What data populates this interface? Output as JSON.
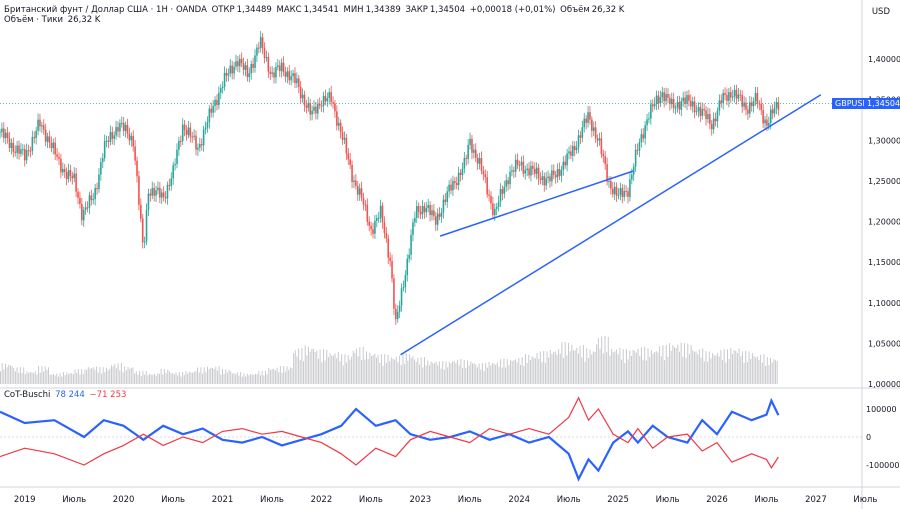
{
  "header": {
    "symbol": "Британский фунт / Доллар США · 1Н · OANDA",
    "open_label": "ОТКР",
    "open": "1,34489",
    "high_label": "МАКС",
    "high": "1,34541",
    "low_label": "МИН",
    "low": "1,34389",
    "close_label": "ЗАКР",
    "close": "1,34504",
    "change": "+0,00018 (+0,01%)",
    "volume_label": "Объём",
    "volume": "26,32 K"
  },
  "volume_legend": {
    "label": "Объём · Тики",
    "value": "26,32 K"
  },
  "cot_legend": {
    "label": "CoT-Buschi",
    "blue_value": "78 244",
    "red_value": "−71 253"
  },
  "currency": "USD",
  "price_tag": {
    "symbol": "GBPUSD",
    "value": "1,34504",
    "color": "#2962ff"
  },
  "colors": {
    "up": "#26a69a",
    "down": "#ef5350",
    "trend": "#2962ff",
    "cot_blue": "#2962ff",
    "cot_red": "#f23645",
    "volume": "#c8c9cc"
  },
  "chart_data": [
    {
      "type": "candlestick",
      "title": "Британский фунт / Доллар США · 1Н · OANDA",
      "y_ticks": [
        "1,40000",
        "1,35000",
        "1,30000",
        "1,25000",
        "1,20000",
        "1,15000",
        "1,10000",
        "1,05000",
        "1,00000"
      ],
      "ylim": [
        1.0,
        1.42
      ],
      "x_ticks": [
        "2019",
        "Июль",
        "2020",
        "Июль",
        "2021",
        "Июль",
        "2022",
        "Июль",
        "2023",
        "Июль",
        "2024",
        "Июль",
        "2025",
        "Июль",
        "2026",
        "Июль",
        "2027",
        "Июль"
      ],
      "x_tick_values": [
        2019.0,
        2019.5,
        2020.0,
        2020.5,
        2021.0,
        2021.5,
        2022.0,
        2022.5,
        2023.0,
        2023.5,
        2024.0,
        2024.5,
        2025.0,
        2025.5,
        2026.0,
        2026.5,
        2027.0,
        2027.5
      ],
      "xlim": [
        2018.75,
        2027.85
      ],
      "close_path": [
        [
          2018.75,
          1.31
        ],
        [
          2018.9,
          1.29
        ],
        [
          2019.0,
          1.28
        ],
        [
          2019.15,
          1.32
        ],
        [
          2019.25,
          1.3
        ],
        [
          2019.35,
          1.27
        ],
        [
          2019.5,
          1.25
        ],
        [
          2019.58,
          1.21
        ],
        [
          2019.7,
          1.23
        ],
        [
          2019.8,
          1.29
        ],
        [
          2019.95,
          1.32
        ],
        [
          2020.1,
          1.3
        ],
        [
          2020.2,
          1.16
        ],
        [
          2020.25,
          1.24
        ],
        [
          2020.4,
          1.23
        ],
        [
          2020.5,
          1.26
        ],
        [
          2020.6,
          1.32
        ],
        [
          2020.75,
          1.29
        ],
        [
          2020.9,
          1.34
        ],
        [
          2021.0,
          1.37
        ],
        [
          2021.15,
          1.4
        ],
        [
          2021.25,
          1.38
        ],
        [
          2021.38,
          1.42
        ],
        [
          2021.5,
          1.38
        ],
        [
          2021.6,
          1.39
        ],
        [
          2021.75,
          1.37
        ],
        [
          2021.9,
          1.33
        ],
        [
          2022.0,
          1.35
        ],
        [
          2022.1,
          1.35
        ],
        [
          2022.2,
          1.31
        ],
        [
          2022.3,
          1.26
        ],
        [
          2022.4,
          1.23
        ],
        [
          2022.5,
          1.19
        ],
        [
          2022.6,
          1.21
        ],
        [
          2022.7,
          1.15
        ],
        [
          2022.75,
          1.07
        ],
        [
          2022.85,
          1.14
        ],
        [
          2022.95,
          1.21
        ],
        [
          2023.05,
          1.22
        ],
        [
          2023.15,
          1.2
        ],
        [
          2023.3,
          1.24
        ],
        [
          2023.45,
          1.27
        ],
        [
          2023.5,
          1.3
        ],
        [
          2023.6,
          1.27
        ],
        [
          2023.75,
          1.21
        ],
        [
          2023.9,
          1.26
        ],
        [
          2024.0,
          1.27
        ],
        [
          2024.15,
          1.26
        ],
        [
          2024.3,
          1.25
        ],
        [
          2024.45,
          1.27
        ],
        [
          2024.55,
          1.29
        ],
        [
          2024.7,
          1.33
        ],
        [
          2024.8,
          1.3
        ],
        [
          2024.9,
          1.25
        ],
        [
          2025.0,
          1.23
        ],
        [
          2025.1,
          1.24
        ],
        [
          2025.2,
          1.29
        ],
        [
          2025.3,
          1.33
        ],
        [
          2025.45,
          1.36
        ],
        [
          2025.55,
          1.34
        ],
        [
          2025.65,
          1.35
        ],
        [
          2025.8,
          1.34
        ],
        [
          2025.95,
          1.32
        ],
        [
          2026.05,
          1.35
        ],
        [
          2026.15,
          1.36
        ],
        [
          2026.3,
          1.34
        ],
        [
          2026.4,
          1.35
        ],
        [
          2026.5,
          1.32
        ],
        [
          2026.62,
          1.345
        ]
      ],
      "trend_lines": [
        {
          "from": [
            2023.2,
            1.182
          ],
          "to": [
            2025.15,
            1.262
          ]
        },
        {
          "from": [
            2022.8,
            1.036
          ],
          "to": [
            2027.05,
            1.356
          ]
        }
      ],
      "last_price": 1.34504
    },
    {
      "type": "bar",
      "series": [
        {
          "name": "Объём · Тики",
          "values": [
            0.35,
            0.28,
            0.22,
            0.3,
            0.18,
            0.2,
            0.25,
            0.3,
            0.28,
            0.35,
            0.3,
            0.22,
            0.18,
            0.25,
            0.2,
            0.22,
            0.28,
            0.3,
            0.25,
            0.2,
            0.18,
            0.22,
            0.28,
            0.3,
            0.6,
            0.65,
            0.58,
            0.55,
            0.5,
            0.62,
            0.55,
            0.5,
            0.48,
            0.52,
            0.45,
            0.4,
            0.38,
            0.42,
            0.4,
            0.35,
            0.38,
            0.42,
            0.45,
            0.5,
            0.55,
            0.6,
            0.7,
            0.65,
            0.6,
            0.8,
            0.62,
            0.58,
            0.62,
            0.6,
            0.65,
            0.7,
            0.68,
            0.6,
            0.55,
            0.58,
            0.62,
            0.55,
            0.5,
            0.45
          ]
        }
      ],
      "note": "relative volume level, 64 bins from 2018.75 to 2026.62"
    },
    {
      "type": "line",
      "title": "CoT-Buschi",
      "y_ticks": [
        "100000",
        "0",
        "-100000"
      ],
      "ylim": [
        -160000,
        150000
      ],
      "series": [
        {
          "name": "blue",
          "values": [
            [
              2018.75,
              90000
            ],
            [
              2019.0,
              50000
            ],
            [
              2019.3,
              60000
            ],
            [
              2019.6,
              0
            ],
            [
              2019.8,
              60000
            ],
            [
              2020.0,
              40000
            ],
            [
              2020.2,
              -10000
            ],
            [
              2020.4,
              40000
            ],
            [
              2020.6,
              10000
            ],
            [
              2020.8,
              30000
            ],
            [
              2021.0,
              -10000
            ],
            [
              2021.2,
              -20000
            ],
            [
              2021.4,
              0
            ],
            [
              2021.6,
              -30000
            ],
            [
              2021.8,
              -10000
            ],
            [
              2022.0,
              10000
            ],
            [
              2022.2,
              40000
            ],
            [
              2022.35,
              100000
            ],
            [
              2022.55,
              40000
            ],
            [
              2022.75,
              60000
            ],
            [
              2022.9,
              10000
            ],
            [
              2023.1,
              -10000
            ],
            [
              2023.3,
              0
            ],
            [
              2023.5,
              20000
            ],
            [
              2023.7,
              -10000
            ],
            [
              2023.9,
              10000
            ],
            [
              2024.1,
              -20000
            ],
            [
              2024.3,
              0
            ],
            [
              2024.5,
              -60000
            ],
            [
              2024.6,
              -150000
            ],
            [
              2024.7,
              -80000
            ],
            [
              2024.8,
              -120000
            ],
            [
              2024.95,
              -20000
            ],
            [
              2025.1,
              20000
            ],
            [
              2025.2,
              -20000
            ],
            [
              2025.35,
              40000
            ],
            [
              2025.5,
              0
            ],
            [
              2025.7,
              -20000
            ],
            [
              2025.85,
              60000
            ],
            [
              2026.0,
              10000
            ],
            [
              2026.15,
              90000
            ],
            [
              2026.35,
              60000
            ],
            [
              2026.5,
              80000
            ],
            [
              2026.55,
              130000
            ],
            [
              2026.62,
              78244
            ]
          ]
        },
        {
          "name": "red",
          "values": [
            [
              2018.75,
              -70000
            ],
            [
              2019.0,
              -40000
            ],
            [
              2019.3,
              -60000
            ],
            [
              2019.6,
              -100000
            ],
            [
              2019.8,
              -60000
            ],
            [
              2020.0,
              -30000
            ],
            [
              2020.2,
              10000
            ],
            [
              2020.4,
              -30000
            ],
            [
              2020.6,
              0
            ],
            [
              2020.8,
              -20000
            ],
            [
              2021.0,
              20000
            ],
            [
              2021.2,
              30000
            ],
            [
              2021.4,
              10000
            ],
            [
              2021.6,
              20000
            ],
            [
              2021.8,
              0
            ],
            [
              2022.0,
              -20000
            ],
            [
              2022.2,
              -60000
            ],
            [
              2022.35,
              -100000
            ],
            [
              2022.55,
              -40000
            ],
            [
              2022.75,
              -70000
            ],
            [
              2022.9,
              -10000
            ],
            [
              2023.1,
              20000
            ],
            [
              2023.3,
              0
            ],
            [
              2023.5,
              -20000
            ],
            [
              2023.7,
              30000
            ],
            [
              2023.9,
              10000
            ],
            [
              2024.1,
              30000
            ],
            [
              2024.3,
              10000
            ],
            [
              2024.5,
              70000
            ],
            [
              2024.6,
              140000
            ],
            [
              2024.7,
              60000
            ],
            [
              2024.8,
              100000
            ],
            [
              2024.95,
              10000
            ],
            [
              2025.1,
              -20000
            ],
            [
              2025.2,
              30000
            ],
            [
              2025.35,
              -40000
            ],
            [
              2025.5,
              0
            ],
            [
              2025.7,
              10000
            ],
            [
              2025.85,
              -50000
            ],
            [
              2026.0,
              -20000
            ],
            [
              2026.15,
              -90000
            ],
            [
              2026.35,
              -60000
            ],
            [
              2026.5,
              -80000
            ],
            [
              2026.55,
              -110000
            ],
            [
              2026.62,
              -71253
            ]
          ]
        }
      ]
    }
  ]
}
